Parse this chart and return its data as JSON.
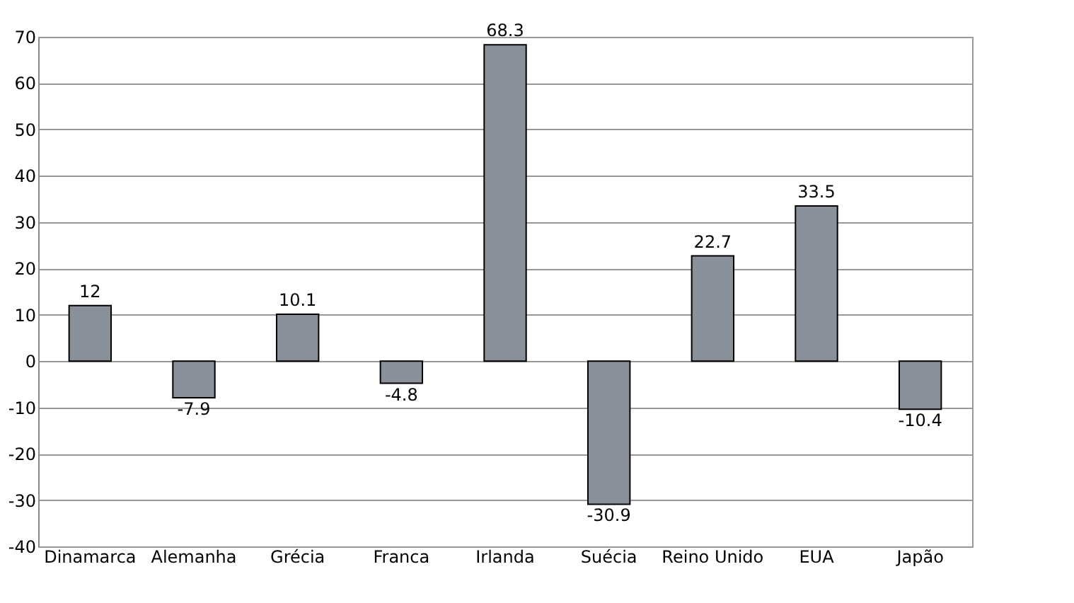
{
  "chart_data": {
    "type": "bar",
    "categories": [
      "Dinamarca",
      "Alemanha",
      "Grécia",
      "Franca",
      "Irlanda",
      "Suécia",
      "Reino Unido",
      "EUA",
      "Japão"
    ],
    "values": [
      12,
      -7.9,
      10.1,
      -4.8,
      68.3,
      -30.9,
      22.7,
      33.5,
      -10.4
    ],
    "color": "#8a9099",
    "ylim": [
      -40,
      70
    ],
    "yticks": [
      -40,
      -30,
      -20,
      -10,
      0,
      10,
      20,
      30,
      40,
      50,
      60,
      70
    ],
    "grid": "y",
    "data_labels": true
  }
}
